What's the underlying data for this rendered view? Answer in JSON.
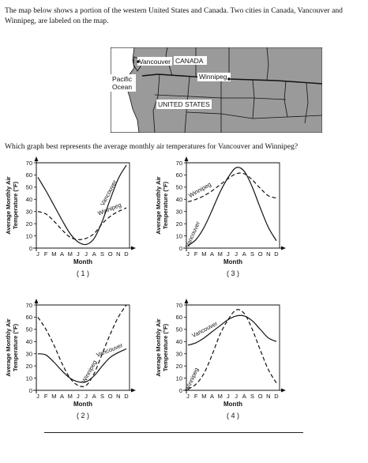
{
  "intro_text": "The map below shows a portion of the western United States and Canada. Two cities in Canada, Vancouver and Winnipeg, are labeled on the map.",
  "map": {
    "labels": {
      "canada": "CANADA",
      "vancouver": "Vancouver",
      "winnipeg": "Winnipeg",
      "pacific": "Pacific",
      "ocean": "Ocean",
      "usa": "UNITED STATES"
    },
    "colors": {
      "land": "#9a9a9a",
      "ocean": "#ffffff",
      "borders": "#111111"
    }
  },
  "question_text": "Which graph best represents the average monthly air temperatures for Vancouver and Winnipeg?",
  "months_axis_label": "J F M A M J J A S O N D",
  "chart_data": [
    {
      "type": "line",
      "choice": "( 1 )",
      "ylabel": "Average Monthly Air Temperature (°F)",
      "xlabel": "Month",
      "x": [
        "J",
        "F",
        "M",
        "A",
        "M",
        "J",
        "J",
        "A",
        "S",
        "O",
        "N",
        "D"
      ],
      "ylim": [
        0,
        70
      ],
      "yticks": [
        0,
        10,
        20,
        30,
        40,
        50,
        60,
        70
      ],
      "series": [
        {
          "name": "Vancouver",
          "style": "solid",
          "values": [
            58,
            47,
            35,
            23,
            12,
            5,
            3,
            8,
            22,
            40,
            57,
            68
          ],
          "label_at": 9,
          "label_angle": -62
        },
        {
          "name": "Winnipeg",
          "style": "dashed",
          "values": [
            30,
            28,
            22,
            15,
            9,
            7,
            8,
            12,
            20,
            26,
            30,
            33
          ],
          "label_at": 9,
          "label_angle": -22
        }
      ]
    },
    {
      "type": "line",
      "choice": "( 3 )",
      "ylabel": "Average Monthly Air Temperature (°F)",
      "xlabel": "Month",
      "x": [
        "J",
        "F",
        "M",
        "A",
        "M",
        "J",
        "J",
        "A",
        "S",
        "O",
        "N",
        "D"
      ],
      "ylim": [
        0,
        70
      ],
      "yticks": [
        0,
        10,
        20,
        30,
        40,
        50,
        60,
        70
      ],
      "series": [
        {
          "name": "Winnipeg",
          "style": "dashed",
          "values": [
            38,
            40,
            43,
            47,
            52,
            57,
            61,
            61,
            56,
            49,
            43,
            41
          ],
          "label_at": 1.6,
          "label_angle": -30
        },
        {
          "name": "Vancouver",
          "style": "solid",
          "values": [
            2,
            7,
            17,
            31,
            46,
            58,
            66,
            63,
            50,
            33,
            17,
            6
          ],
          "label_at": 0.8,
          "label_angle": -66
        }
      ]
    },
    {
      "type": "line",
      "choice": "( 2 )",
      "ylabel": "Average Monthly Air Temperature (°F)",
      "xlabel": "Month",
      "x": [
        "J",
        "F",
        "M",
        "A",
        "M",
        "J",
        "J",
        "A",
        "S",
        "O",
        "N",
        "D"
      ],
      "ylim": [
        0,
        70
      ],
      "yticks": [
        0,
        10,
        20,
        30,
        40,
        50,
        60,
        70
      ],
      "series": [
        {
          "name": "Winnipeg",
          "style": "dashed",
          "values": [
            60,
            50,
            37,
            22,
            10,
            4,
            4,
            14,
            30,
            46,
            60,
            70
          ],
          "label_at": 6.6,
          "label_angle": -62
        },
        {
          "name": "Vancouver",
          "style": "solid",
          "values": [
            30,
            29,
            23,
            16,
            10,
            7,
            7,
            12,
            20,
            27,
            31,
            34
          ],
          "label_at": 9,
          "label_angle": -22
        }
      ]
    },
    {
      "type": "line",
      "choice": "( 4 )",
      "ylabel": "Average Monthly Air Temperature (°F)",
      "xlabel": "Month",
      "x": [
        "J",
        "F",
        "M",
        "A",
        "M",
        "J",
        "J",
        "A",
        "S",
        "O",
        "N",
        "D"
      ],
      "ylim": [
        0,
        70
      ],
      "yticks": [
        0,
        10,
        20,
        30,
        40,
        50,
        60,
        70
      ],
      "series": [
        {
          "name": "Vancouver",
          "style": "solid",
          "values": [
            37,
            39,
            43,
            48,
            53,
            58,
            61,
            61,
            57,
            50,
            43,
            40
          ],
          "label_at": 2.2,
          "label_angle": -28
        },
        {
          "name": "Winnipeg",
          "style": "dashed",
          "values": [
            1,
            5,
            14,
            29,
            46,
            58,
            66,
            63,
            50,
            33,
            17,
            6
          ],
          "label_at": 0.7,
          "label_angle": -66
        }
      ]
    }
  ]
}
